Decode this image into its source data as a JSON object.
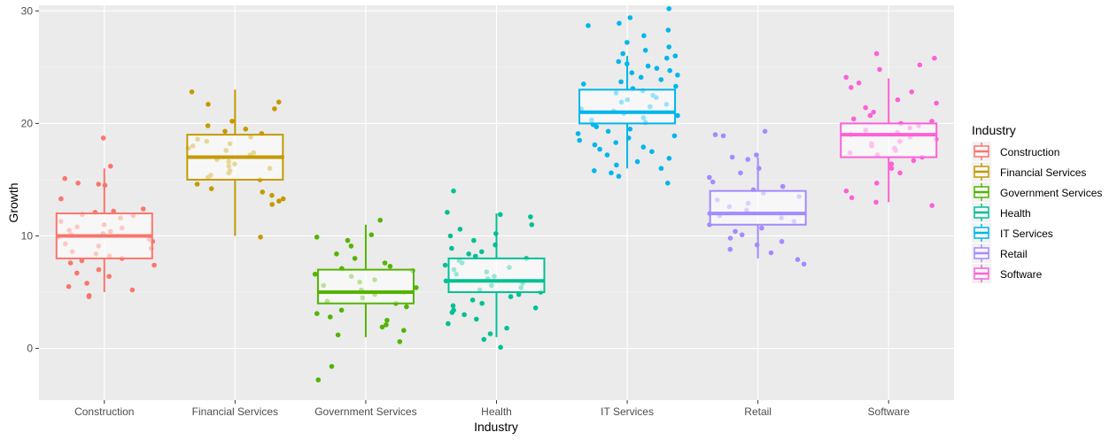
{
  "chart_data": {
    "type": "boxplot",
    "title": "",
    "xlabel": "Industry",
    "ylabel": "Growth",
    "ylim": [
      -4.6,
      30.5
    ],
    "yticks": [
      0,
      10,
      20,
      30
    ],
    "grid": true,
    "legend": {
      "title": "Industry",
      "placement": "right"
    },
    "series": [
      {
        "name": "Construction",
        "color": "#F8766D",
        "box": {
          "whisker_low": 5,
          "q1": 8,
          "median": 10,
          "q3": 12,
          "whisker_high": 16
        },
        "points": [
          18.7,
          16.2,
          15.1,
          14.7,
          14.6,
          14.5,
          13.3,
          12.4,
          12.2,
          12.1,
          11.9,
          11.8,
          11.6,
          11.3,
          11.0,
          10.8,
          10.7,
          10.5,
          10.4,
          10.2,
          10.1,
          9.9,
          9.7,
          9.5,
          9.3,
          9.1,
          8.9,
          8.6,
          8.4,
          8.2,
          8.0,
          7.8,
          7.6,
          7.4,
          7.0,
          6.7,
          6.4,
          5.8,
          5.5,
          5.2,
          4.7,
          4.6
        ]
      },
      {
        "name": "Financial Services",
        "color": "#C49A00",
        "box": {
          "whisker_low": 10,
          "q1": 15,
          "median": 17,
          "q3": 19,
          "whisker_high": 23
        },
        "points": [
          22.8,
          21.9,
          21.7,
          21.3,
          20.2,
          19.8,
          19.5,
          19.3,
          19.1,
          18.8,
          18.6,
          18.4,
          18.2,
          18.0,
          17.8,
          17.6,
          17.4,
          17.2,
          17.0,
          16.8,
          16.6,
          16.4,
          16.2,
          16.0,
          15.8,
          15.6,
          15.4,
          15.2,
          15.0,
          14.6,
          14.2,
          13.9,
          13.6,
          13.3,
          13.1,
          12.8,
          9.9
        ]
      },
      {
        "name": "Government Services",
        "color": "#53B400",
        "box": {
          "whisker_low": 1,
          "q1": 4,
          "median": 5,
          "q3": 7,
          "whisker_high": 11
        },
        "points": [
          11.4,
          10.1,
          9.9,
          9.6,
          9.1,
          8.4,
          8.0,
          7.6,
          7.3,
          7.1,
          6.9,
          6.6,
          6.4,
          6.1,
          5.9,
          5.6,
          5.4,
          5.2,
          5.0,
          4.8,
          4.5,
          4.2,
          4.0,
          3.7,
          3.4,
          3.1,
          2.8,
          2.5,
          2.1,
          1.9,
          1.6,
          1.2,
          0.6,
          -1.6,
          -2.8
        ]
      },
      {
        "name": "Health",
        "color": "#00C094",
        "box": {
          "whisker_low": 1,
          "q1": 5,
          "median": 6,
          "q3": 8,
          "whisker_high": 12
        },
        "points": [
          14.0,
          12.1,
          11.9,
          11.7,
          11.0,
          10.6,
          10.2,
          10.0,
          9.6,
          9.2,
          8.9,
          8.6,
          8.4,
          8.2,
          8.0,
          7.8,
          7.6,
          7.4,
          7.2,
          7.0,
          6.8,
          6.6,
          6.4,
          6.2,
          6.0,
          5.8,
          5.6,
          5.4,
          5.2,
          5.0,
          4.8,
          4.6,
          4.3,
          4.0,
          3.8,
          3.6,
          3.4,
          3.2,
          3.0,
          2.6,
          2.2,
          1.8,
          1.3,
          0.8,
          0.1
        ]
      },
      {
        "name": "IT Services",
        "color": "#00B6EB",
        "box": {
          "whisker_low": 16,
          "q1": 20,
          "median": 21,
          "q3": 23,
          "whisker_high": 26
        },
        "points": [
          30.2,
          29.4,
          28.9,
          28.7,
          28.3,
          27.8,
          27.2,
          26.8,
          26.5,
          26.2,
          26.0,
          25.8,
          25.5,
          25.3,
          25.1,
          24.9,
          24.7,
          24.5,
          24.3,
          24.1,
          23.9,
          23.7,
          23.5,
          23.3,
          23.1,
          22.9,
          22.7,
          22.5,
          22.3,
          22.1,
          21.9,
          21.7,
          21.5,
          21.3,
          21.1,
          20.9,
          20.7,
          20.5,
          20.3,
          20.1,
          19.9,
          19.7,
          19.5,
          19.3,
          19.1,
          18.9,
          18.7,
          18.5,
          18.3,
          18.1,
          17.9,
          17.7,
          17.5,
          17.2,
          16.9,
          16.6,
          16.3,
          16.0,
          15.8,
          15.6,
          15.3,
          14.7
        ]
      },
      {
        "name": "Retail",
        "color": "#A58AFF",
        "box": {
          "whisker_low": 8,
          "q1": 11,
          "median": 12,
          "q3": 14,
          "whisker_high": 17
        },
        "points": [
          19.3,
          19.0,
          18.9,
          17.2,
          17.0,
          16.8,
          16.0,
          15.6,
          15.2,
          14.8,
          14.4,
          14.1,
          13.8,
          13.5,
          13.2,
          12.9,
          12.6,
          12.3,
          12.0,
          11.8,
          11.6,
          11.3,
          11.0,
          10.7,
          10.4,
          10.1,
          9.8,
          9.5,
          9.2,
          8.8,
          8.5,
          7.9,
          7.5
        ]
      },
      {
        "name": "Software",
        "color": "#FB61D7",
        "box": {
          "whisker_low": 13,
          "q1": 17,
          "median": 19,
          "q3": 20,
          "whisker_high": 24
        },
        "points": [
          26.2,
          25.8,
          25.2,
          24.8,
          24.1,
          23.6,
          23.2,
          22.8,
          22.1,
          21.8,
          21.4,
          21.0,
          20.7,
          20.4,
          20.2,
          20.0,
          19.8,
          19.6,
          19.4,
          19.2,
          19.0,
          18.8,
          18.6,
          18.4,
          18.2,
          18.0,
          17.8,
          17.6,
          17.4,
          17.2,
          17.0,
          16.7,
          16.4,
          16.0,
          15.6,
          14.7,
          14.0,
          13.4,
          13.0,
          12.7
        ]
      }
    ]
  }
}
